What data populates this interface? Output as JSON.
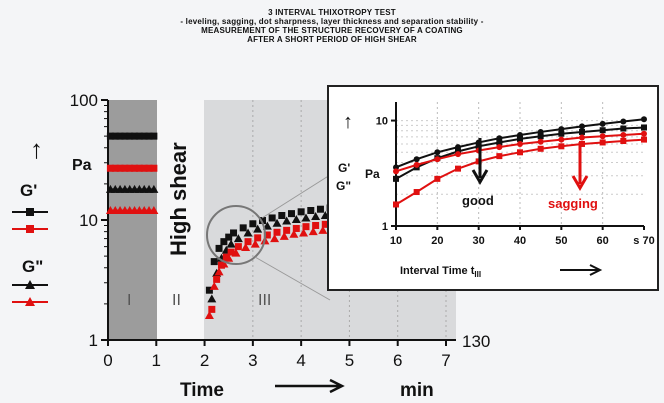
{
  "header": {
    "line1": "3 INTERVAL THIXOTROPY TEST",
    "line2": "- leveling, sagging, dot sharpness, layer thickness and separation stability -",
    "line3": "MEASUREMENT OF THE STRUCTURE RECOVERY OF A COATING",
    "line4": "AFTER A SHORT PERIOD OF HIGH SHEAR"
  },
  "colors": {
    "black": "#111111",
    "red": "#e01010",
    "shade": "#9c9c9c",
    "light_shade": "#d9dadc"
  },
  "chart_data": [
    {
      "type": "scatter",
      "y_scale": "log",
      "xlim": [
        0,
        7
      ],
      "ylim": [
        1,
        100
      ],
      "x_ticks": [
        "0",
        "1",
        "2",
        "3",
        "4",
        "5",
        "6",
        "7"
      ],
      "y_ticks": [
        "1",
        "10",
        "100"
      ],
      "xlabel": "Time",
      "x_unit": "min",
      "ylabel_arrow": "↑",
      "y_unit": "Pa",
      "y_label_G1": "G'",
      "y_label_G2": "G\"",
      "right_label": "130",
      "interval_labels": [
        "I",
        "II",
        "III"
      ],
      "high_shear_label": "High shear",
      "interval_I": [
        0,
        1
      ],
      "interval_II": [
        1,
        2.1
      ],
      "series": [
        {
          "marker": "square",
          "color": "#111111",
          "x": [
            0.05,
            0.15,
            0.25,
            0.35,
            0.45,
            0.55,
            0.65,
            0.75,
            0.85,
            0.95
          ],
          "values": [
            50,
            50,
            50,
            50,
            50,
            50,
            50,
            50,
            50,
            50
          ]
        },
        {
          "marker": "square",
          "color": "#e01010",
          "x": [
            0.05,
            0.15,
            0.25,
            0.35,
            0.45,
            0.55,
            0.65,
            0.75,
            0.85,
            0.95
          ],
          "values": [
            27,
            27,
            27,
            27,
            27,
            27,
            27,
            27,
            27,
            27
          ]
        },
        {
          "marker": "triangle",
          "color": "#111111",
          "x": [
            0.05,
            0.15,
            0.25,
            0.35,
            0.45,
            0.55,
            0.65,
            0.75,
            0.85,
            0.95
          ],
          "values": [
            18,
            18,
            18,
            18,
            18,
            18,
            18,
            18,
            18,
            18
          ]
        },
        {
          "marker": "triangle",
          "color": "#e01010",
          "x": [
            0.05,
            0.15,
            0.25,
            0.35,
            0.45,
            0.55,
            0.65,
            0.75,
            0.85,
            0.95
          ],
          "values": [
            12,
            12,
            12,
            12,
            12,
            12,
            12,
            12,
            12,
            12
          ]
        },
        {
          "marker": "square",
          "color": "#111111",
          "x": [
            2.1,
            2.2,
            2.3,
            2.4,
            2.5,
            2.6,
            2.8,
            3.0,
            3.2,
            3.4,
            3.6,
            3.8,
            4.0,
            4.2,
            4.4,
            4.6,
            4.8,
            5.0
          ],
          "values": [
            2.6,
            4.5,
            5.8,
            6.6,
            7.2,
            7.8,
            8.6,
            9.3,
            9.9,
            10.4,
            10.9,
            11.3,
            11.7,
            12.0,
            12.3,
            12.6,
            12.9,
            13.1
          ]
        },
        {
          "marker": "triangle",
          "color": "#111111",
          "x": [
            2.15,
            2.25,
            2.35,
            2.45,
            2.55,
            2.7,
            2.9,
            3.1,
            3.3,
            3.5,
            3.7,
            3.9,
            4.1,
            4.3,
            4.5,
            4.7,
            4.9
          ],
          "values": [
            2.2,
            3.6,
            4.8,
            5.6,
            6.3,
            7.0,
            7.8,
            8.4,
            8.9,
            9.4,
            9.8,
            10.1,
            10.4,
            10.7,
            10.9,
            11.1,
            11.3
          ]
        },
        {
          "marker": "square",
          "color": "#e01010",
          "x": [
            2.15,
            2.25,
            2.35,
            2.45,
            2.55,
            2.7,
            2.9,
            3.1,
            3.3,
            3.5,
            3.7,
            3.9,
            4.1,
            4.3,
            4.5,
            4.7,
            4.9
          ],
          "values": [
            1.8,
            3.2,
            4.2,
            4.9,
            5.4,
            6.0,
            6.6,
            7.1,
            7.5,
            7.9,
            8.2,
            8.5,
            8.8,
            9.0,
            9.2,
            9.4,
            9.6
          ]
        },
        {
          "marker": "triangle",
          "color": "#e01010",
          "x": [
            2.1,
            2.2,
            2.3,
            2.4,
            2.5,
            2.65,
            2.85,
            3.05,
            3.25,
            3.45,
            3.65,
            3.85,
            4.05,
            4.25,
            4.45,
            4.65,
            4.85
          ],
          "values": [
            1.6,
            2.8,
            3.7,
            4.3,
            4.8,
            5.3,
            5.9,
            6.3,
            6.7,
            7.0,
            7.3,
            7.6,
            7.8,
            8.0,
            8.2,
            8.4,
            8.5
          ]
        }
      ]
    },
    {
      "type": "line",
      "y_scale": "log",
      "xlim": [
        10,
        70
      ],
      "ylim": [
        1,
        15
      ],
      "x_ticks": [
        "10",
        "20",
        "30",
        "40",
        "50",
        "60",
        "s 70"
      ],
      "y_ticks": [
        "1",
        "10"
      ],
      "xlabel": "Interval Time t",
      "xlabel_sub": "III",
      "arrow_label": "↑",
      "y_label_G1": "G'",
      "y_label_G2": "G\"",
      "y_unit": "Pa",
      "annotation_good": "good",
      "annotation_sagging": "sagging",
      "series": [
        {
          "marker": "circle",
          "color": "#111111",
          "x": [
            10,
            15,
            20,
            25,
            30,
            35,
            40,
            45,
            50,
            55,
            60,
            65,
            70
          ],
          "values": [
            3.6,
            4.3,
            5.0,
            5.6,
            6.2,
            6.8,
            7.3,
            7.8,
            8.3,
            8.8,
            9.3,
            9.8,
            10.3
          ]
        },
        {
          "marker": "square",
          "color": "#111111",
          "x": [
            10,
            15,
            20,
            25,
            30,
            35,
            40,
            45,
            50,
            55,
            60,
            65,
            70
          ],
          "values": [
            2.8,
            3.6,
            4.4,
            5.1,
            5.7,
            6.2,
            6.7,
            7.1,
            7.5,
            7.8,
            8.1,
            8.4,
            8.6
          ]
        },
        {
          "marker": "circle",
          "color": "#e01010",
          "x": [
            10,
            15,
            20,
            25,
            30,
            35,
            40,
            45,
            50,
            55,
            60,
            65,
            70
          ],
          "values": [
            3.3,
            3.8,
            4.3,
            4.8,
            5.2,
            5.6,
            6.0,
            6.3,
            6.6,
            6.9,
            7.1,
            7.3,
            7.5
          ]
        },
        {
          "marker": "square",
          "color": "#e01010",
          "x": [
            10,
            15,
            20,
            25,
            30,
            35,
            40,
            45,
            50,
            55,
            60,
            65,
            70
          ],
          "values": [
            1.6,
            2.1,
            2.8,
            3.5,
            4.1,
            4.6,
            5.0,
            5.4,
            5.7,
            6.0,
            6.2,
            6.4,
            6.6
          ]
        }
      ]
    }
  ]
}
